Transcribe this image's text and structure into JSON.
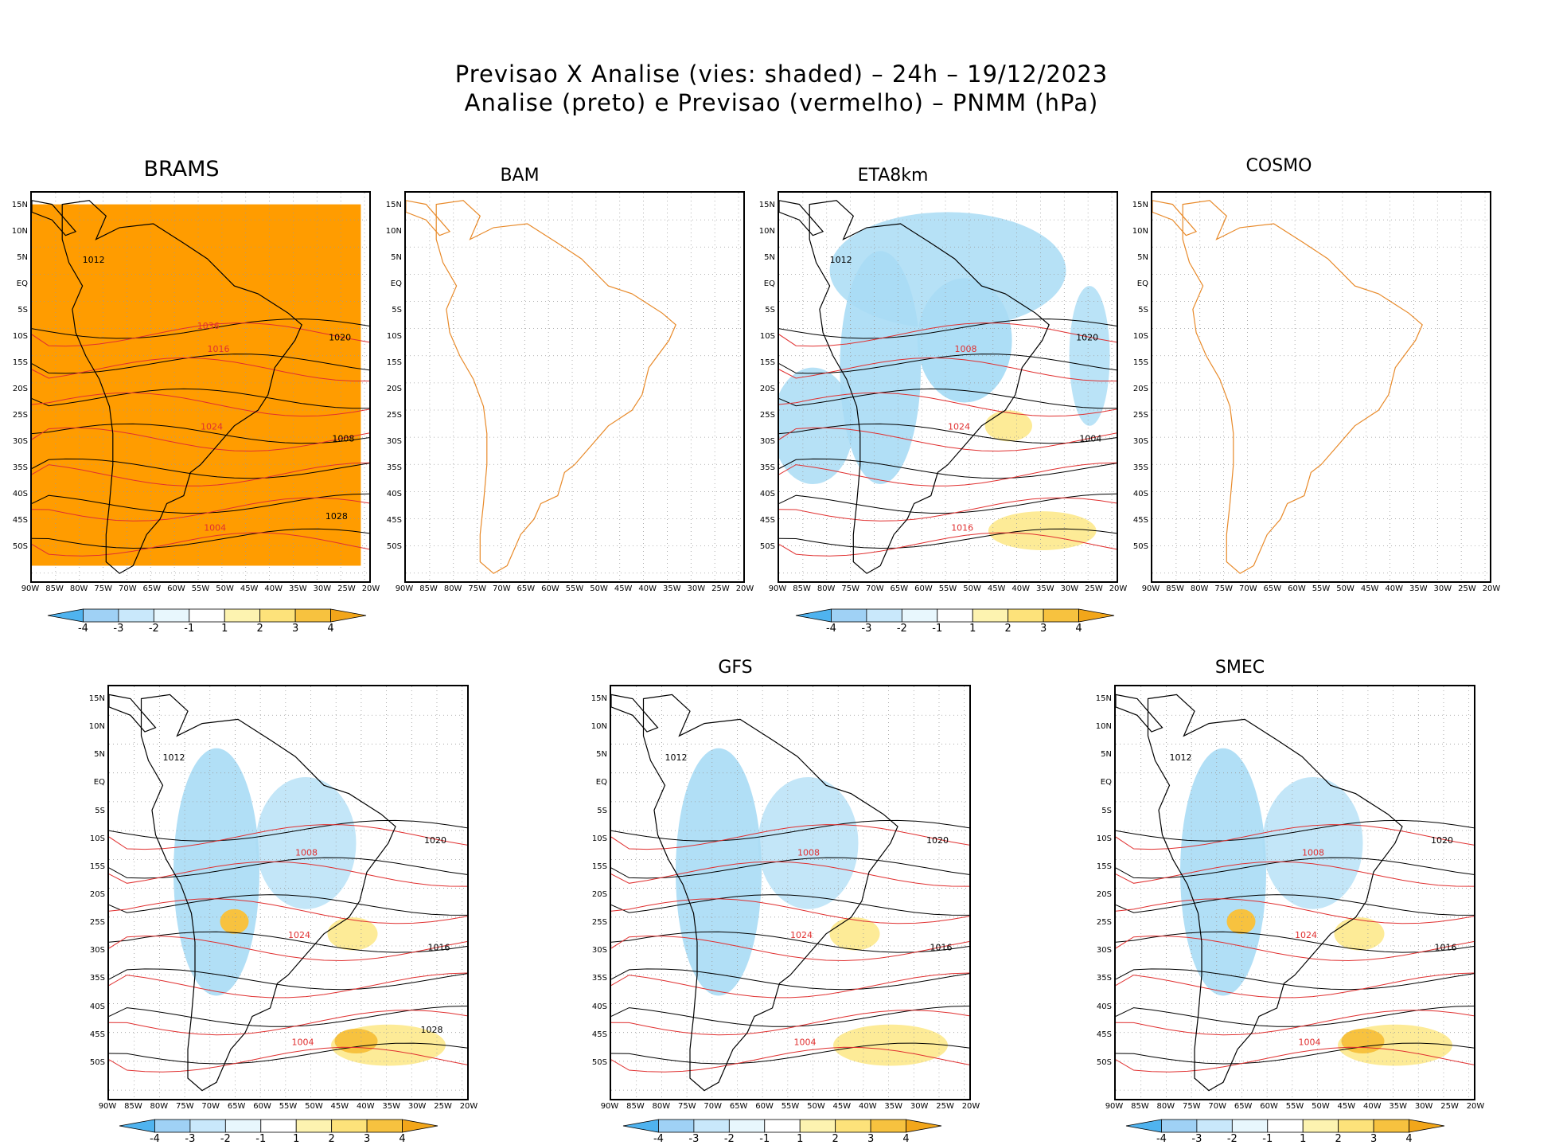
{
  "title": {
    "line1": "Previsao X Analise (vies: shaded) – 24h – 19/12/2023",
    "line2": "Analise (preto) e Previsao (vermelho) – PNMM (hPa)"
  },
  "axes": {
    "lat_labels": [
      "15N",
      "10N",
      "5N",
      "EQ",
      "5S",
      "10S",
      "15S",
      "20S",
      "25S",
      "30S",
      "35S",
      "40S",
      "45S",
      "50S"
    ],
    "lon_labels": [
      "90W",
      "85W",
      "80W",
      "75W",
      "70W",
      "65W",
      "60W",
      "55W",
      "50W",
      "45W",
      "40W",
      "35W",
      "30W",
      "25W",
      "20W"
    ]
  },
  "colorbar": {
    "labels": [
      "-4",
      "-3",
      "-2",
      "-1",
      "1",
      "2",
      "3",
      "4"
    ],
    "colors": [
      "#4fb3ef",
      "#9fd1f5",
      "#c9e8fb",
      "#e8f7fd",
      "#ffffff",
      "#fdf3b0",
      "#fde27a",
      "#f7c23f",
      "#f2a61a"
    ]
  },
  "colors": {
    "bias_strong": "#ff9c00",
    "analysis_contour": "#000000",
    "forecast_contour": "#e03030",
    "coast_outline": "#e88a2a",
    "negative_bias": "#a9dcf5",
    "positive_bias": "#fdeb97"
  },
  "panels": [
    {
      "name": "BRAMS",
      "contour_labels": [
        "1012",
        "1016",
        "1008",
        "1004",
        "1020",
        "1024",
        "1028",
        "1036"
      ]
    },
    {
      "name": "BAM",
      "contour_labels": []
    },
    {
      "name": "ETA8km",
      "contour_labels": [
        "1012",
        "1008",
        "1004",
        "1016",
        "1020",
        "1024"
      ]
    },
    {
      "name": "COSMO",
      "contour_labels": []
    },
    {
      "name": "",
      "contour_labels": [
        "1012",
        "1008",
        "1016",
        "1004",
        "1020",
        "1024",
        "1028"
      ]
    },
    {
      "name": "GFS",
      "contour_labels": [
        "1012",
        "1008",
        "1016",
        "1004",
        "1020",
        "1024"
      ]
    },
    {
      "name": "SMEC",
      "contour_labels": [
        "1012",
        "1008",
        "1016",
        "1004",
        "1020",
        "1024"
      ]
    }
  ]
}
